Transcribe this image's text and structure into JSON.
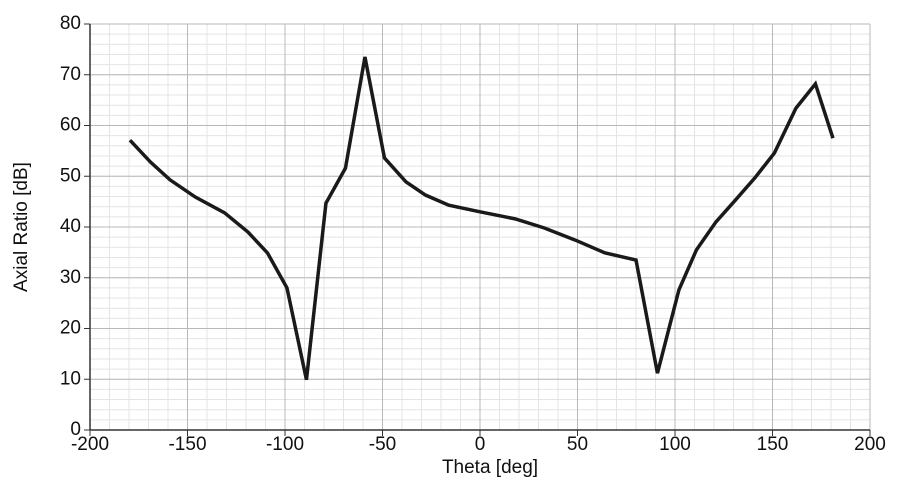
{
  "chart_data": {
    "type": "line",
    "xlabel": "Theta [deg]",
    "ylabel": "Axial Ratio [dB]",
    "x": [
      -179.5,
      -169,
      -159,
      -146,
      -131,
      -119,
      -109,
      -99,
      -89,
      -79,
      -69,
      -59,
      -49,
      -38,
      -28,
      -16,
      0,
      18,
      33,
      49,
      64,
      80,
      91,
      102,
      111,
      121,
      131,
      141,
      151,
      162,
      172,
      181
    ],
    "series": [
      {
        "name": "Axial Ratio",
        "color": "#1a1a1a",
        "values": [
          57.1,
          52.8,
          49.3,
          45.9,
          42.8,
          39,
          34.9,
          28,
          9.9,
          44.7,
          51.6,
          73.5,
          53.6,
          48.9,
          46.3,
          44.3,
          43,
          41.6,
          39.8,
          37.4,
          34.9,
          33.5,
          11.2,
          27.6,
          35.5,
          41,
          45.3,
          49.7,
          54.6,
          63.4,
          68.2,
          57.5
        ]
      }
    ],
    "xlim": [
      -200,
      200
    ],
    "xticks": [
      -200,
      -150,
      -100,
      -50,
      0,
      50,
      100,
      150,
      200
    ],
    "ylim": [
      0,
      80
    ],
    "yticks": [
      0,
      10,
      20,
      30,
      40,
      50,
      60,
      70,
      80
    ],
    "grid": true,
    "minor_grid": {
      "x": 10,
      "y": 2
    }
  }
}
